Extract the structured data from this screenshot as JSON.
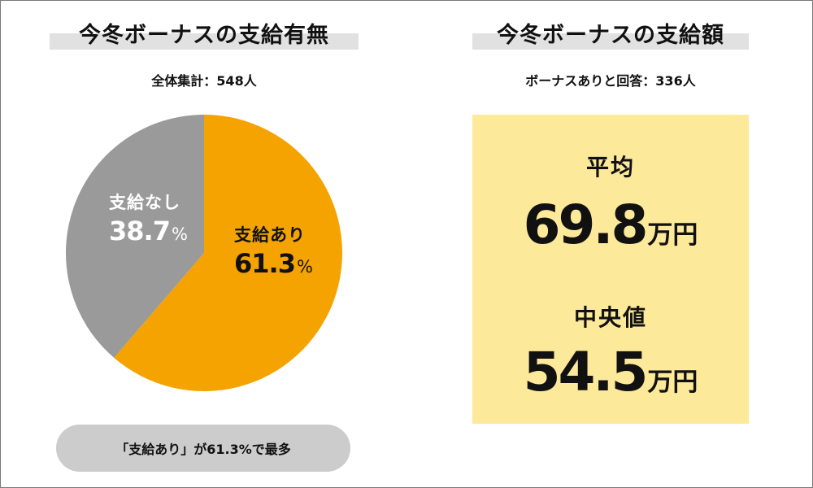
{
  "left_panel": {
    "title": "今冬ボーナスの支給有無",
    "subtitle": "全体集計：548人",
    "note": "「支給あり」が61.3%で最多"
  },
  "right_panel": {
    "title": "今冬ボーナスの支給額",
    "subtitle": "ボーナスありと回答：336人",
    "average_label": "平均",
    "average_value": "69.8",
    "average_unit": "万円",
    "median_label": "中央値",
    "median_value": "54.5",
    "median_unit": "万円"
  },
  "colors": {
    "yes": "#f5a300",
    "no": "#9a9a9a",
    "box": "#fde99a",
    "title_bar": "#e1e1e1",
    "pill": "#cccccc"
  },
  "chart_data": {
    "type": "pie",
    "title": "今冬ボーナスの支給有無",
    "subtitle": "全体集計：548人",
    "slices": [
      {
        "label": "支給あり",
        "value": 61.3,
        "value_text": "61.3",
        "unit": "%",
        "color": "#f5a300"
      },
      {
        "label": "支給なし",
        "value": 38.7,
        "value_text": "38.7",
        "unit": "%",
        "color": "#9a9a9a"
      }
    ],
    "start": "12 o'clock, clockwise"
  }
}
